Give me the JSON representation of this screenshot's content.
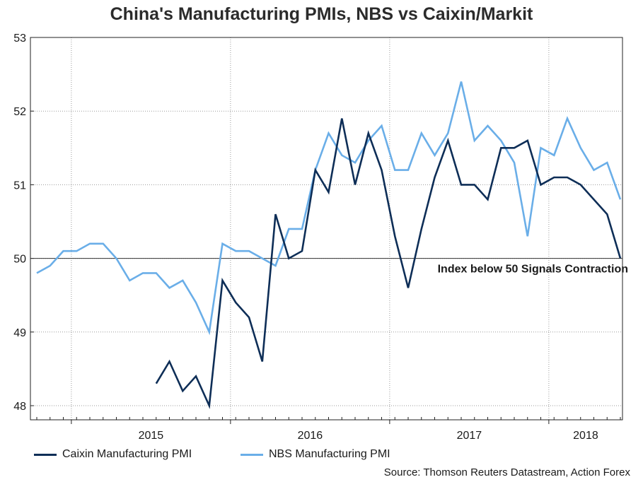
{
  "chart_data": {
    "type": "line",
    "title": "China's Manufacturing PMIs, NBS vs Caixin/Markit",
    "xlabel": "",
    "ylabel": "",
    "ylim": [
      48,
      53
    ],
    "yticks": [
      "48",
      "49",
      "50",
      "51",
      "52",
      "53"
    ],
    "xticks": [
      "2015",
      "2016",
      "2017",
      "2018"
    ],
    "x_start": "2014-10",
    "x_end": "2018-06",
    "reference_line": {
      "y": 50,
      "label": "Index below 50 Signals Contraction"
    },
    "series": [
      {
        "name": "Caixin Manufacturing PMI",
        "color": "#0e2e57",
        "start_index": 9,
        "values": [
          48.3,
          48.6,
          48.2,
          48.4,
          48.0,
          49.7,
          49.4,
          49.2,
          48.6,
          50.6,
          50.0,
          50.1,
          51.2,
          50.9,
          51.9,
          51.0,
          51.7,
          51.2,
          50.3,
          49.6,
          50.4,
          51.1,
          51.6,
          51.0,
          51.0,
          50.8,
          51.5,
          51.5,
          51.6,
          51.0,
          51.1,
          51.1,
          51.0,
          50.8,
          50.6,
          50.0
        ]
      },
      {
        "name": "NBS Manufacturing PMI",
        "color": "#6aaee8",
        "start_index": 0,
        "values": [
          49.8,
          49.9,
          50.1,
          50.1,
          50.2,
          50.2,
          50.0,
          49.7,
          49.8,
          49.8,
          49.6,
          49.7,
          49.4,
          49.0,
          50.2,
          50.1,
          50.1,
          50.0,
          49.9,
          50.4,
          50.4,
          51.2,
          51.7,
          51.4,
          51.3,
          51.6,
          51.8,
          51.2,
          51.2,
          51.7,
          51.4,
          51.7,
          52.4,
          51.6,
          51.8,
          51.6,
          51.3,
          50.3,
          51.5,
          51.4,
          51.9,
          51.5,
          51.2,
          51.3,
          50.8
        ]
      }
    ]
  },
  "source": "Source: Thomson Reuters Datastream, Action Forex"
}
